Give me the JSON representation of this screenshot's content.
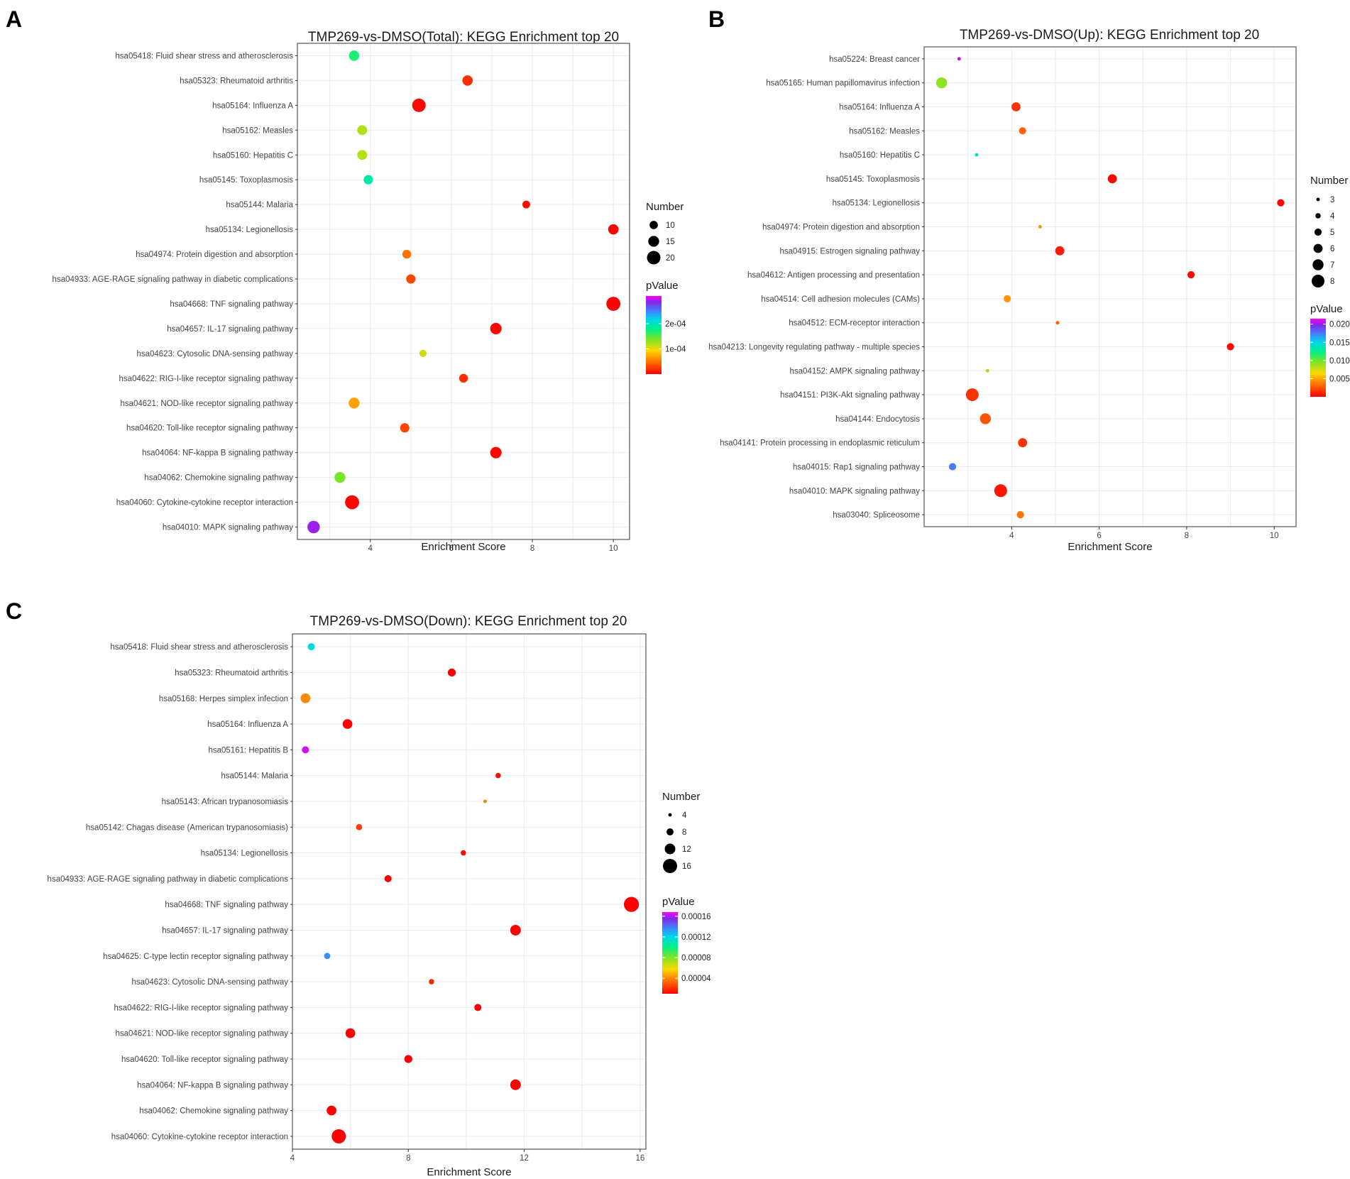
{
  "chart_data": [
    {
      "panel": "A",
      "type": "scatter",
      "title": "TMP269-vs-DMSO(Total): KEGG Enrichment top 20",
      "xlabel": "Enrichment Score",
      "xlim": [
        2.2,
        10.4
      ],
      "xticks": [
        4,
        6,
        8,
        10
      ],
      "xtick_labels": [
        "4",
        "6",
        "8",
        "10"
      ],
      "size_legend": {
        "title": "Number",
        "values": [
          10,
          15,
          20
        ],
        "labels": [
          "10",
          "15",
          "20"
        ]
      },
      "color_legend": {
        "title": "pValue",
        "min": 0,
        "max": 0.00031,
        "ticks": [
          0.0002,
          0.0001
        ],
        "tick_labels": [
          "2e-04",
          "1e-04"
        ]
      },
      "size_range": [
        5,
        20
      ],
      "points": [
        {
          "term": "hsa05418: Fluid shear stress and atherosclerosis",
          "x": 3.6,
          "size": 14,
          "p": 0.00017
        },
        {
          "term": "hsa05323: Rheumatoid arthritis",
          "x": 6.4,
          "size": 14,
          "p": 2e-05
        },
        {
          "term": "hsa05164: Influenza A",
          "x": 5.2,
          "size": 20,
          "p": 3e-06
        },
        {
          "term": "hsa05162: Measles",
          "x": 3.8,
          "size": 13,
          "p": 0.00012
        },
        {
          "term": "hsa05160: Hepatitis C",
          "x": 3.8,
          "size": 13,
          "p": 0.00012
        },
        {
          "term": "hsa05145: Toxoplasmosis",
          "x": 3.95,
          "size": 12,
          "p": 0.00019
        },
        {
          "term": "hsa05144: Malaria",
          "x": 7.85,
          "size": 9,
          "p": 5e-06
        },
        {
          "term": "hsa05134: Legionellosis",
          "x": 10.0,
          "size": 14,
          "p": 1e-06
        },
        {
          "term": "hsa04974: Protein digestion and absorption",
          "x": 4.9,
          "size": 11,
          "p": 5e-05
        },
        {
          "term": "hsa04933: AGE-RAGE signaling pathway in diabetic complications",
          "x": 5.0,
          "size": 12,
          "p": 3e-05
        },
        {
          "term": "hsa04668: TNF signaling pathway",
          "x": 10.0,
          "size": 21,
          "p": 1e-07
        },
        {
          "term": "hsa04657: IL-17 signaling pathway",
          "x": 7.1,
          "size": 16,
          "p": 2e-06
        },
        {
          "term": "hsa04623: Cytosolic DNA-sensing pathway",
          "x": 5.3,
          "size": 8,
          "p": 0.00011
        },
        {
          "term": "hsa04622: RIG-I-like receptor signaling pathway",
          "x": 6.3,
          "size": 11,
          "p": 2e-05
        },
        {
          "term": "hsa04621: NOD-like receptor signaling pathway",
          "x": 3.6,
          "size": 15,
          "p": 7e-05
        },
        {
          "term": "hsa04620: Toll-like receptor signaling pathway",
          "x": 4.85,
          "size": 12,
          "p": 3e-05
        },
        {
          "term": "hsa04064: NF-kappa B signaling pathway",
          "x": 7.1,
          "size": 16,
          "p": 2e-06
        },
        {
          "term": "hsa04062: Chemokine signaling pathway",
          "x": 3.25,
          "size": 15,
          "p": 0.00014
        },
        {
          "term": "hsa04060: Cytokine-cytokine receptor interaction",
          "x": 3.55,
          "size": 21,
          "p": 2e-06
        },
        {
          "term": "hsa04010: MAPK signaling pathway",
          "x": 2.6,
          "size": 18,
          "p": 0.00029
        }
      ]
    },
    {
      "panel": "B",
      "type": "scatter",
      "title": "TMP269-vs-DMSO(Up): KEGG Enrichment top 20",
      "xlabel": "Enrichment Score",
      "xlim": [
        2.0,
        10.5
      ],
      "xticks": [
        4,
        6,
        8,
        10
      ],
      "xtick_labels": [
        "4",
        "6",
        "8",
        "10"
      ],
      "size_legend": {
        "title": "Number",
        "values": [
          3,
          4,
          5,
          6,
          7,
          8
        ],
        "labels": [
          "3",
          "4",
          "5",
          "6",
          "7",
          "8"
        ]
      },
      "color_legend": {
        "title": "pValue",
        "min": 0,
        "max": 0.0215,
        "ticks": [
          0.02,
          0.015,
          0.01,
          0.005
        ],
        "tick_labels": [
          "0.020",
          "0.015",
          "0.010",
          "0.005"
        ]
      },
      "size_range": [
        3,
        8
      ],
      "points": [
        {
          "term": "hsa05224: Breast cancer",
          "x": 2.8,
          "size": 3,
          "p": 0.0205
        },
        {
          "term": "hsa05165: Human papillomavirus infection",
          "x": 2.4,
          "size": 7,
          "p": 0.0092
        },
        {
          "term": "hsa05164: Influenza A",
          "x": 4.1,
          "size": 6,
          "p": 0.0015
        },
        {
          "term": "hsa05162: Measles",
          "x": 4.25,
          "size": 5,
          "p": 0.003
        },
        {
          "term": "hsa05160: Hepatitis C",
          "x": 3.2,
          "size": 3,
          "p": 0.0145
        },
        {
          "term": "hsa05145: Toxoplasmosis",
          "x": 6.3,
          "size": 6,
          "p": 0.0002
        },
        {
          "term": "hsa05134: Legionellosis",
          "x": 10.15,
          "size": 5,
          "p": 0.0001
        },
        {
          "term": "hsa04974: Protein digestion and absorption",
          "x": 4.65,
          "size": 3,
          "p": 0.0045
        },
        {
          "term": "hsa04915: Estrogen signaling pathway",
          "x": 5.1,
          "size": 6,
          "p": 0.0008
        },
        {
          "term": "hsa04612: Antigen processing and presentation",
          "x": 8.1,
          "size": 5,
          "p": 0.0002
        },
        {
          "term": "hsa04514: Cell adhesion molecules (CAMs)",
          "x": 3.9,
          "size": 5,
          "p": 0.0045
        },
        {
          "term": "hsa04512: ECM-receptor interaction",
          "x": 5.05,
          "size": 3,
          "p": 0.003
        },
        {
          "term": "hsa04213: Longevity regulating pathway - multiple species",
          "x": 9.0,
          "size": 5,
          "p": 0.0003
        },
        {
          "term": "hsa04152: AMPK signaling pathway",
          "x": 3.45,
          "size": 3,
          "p": 0.0085
        },
        {
          "term": "hsa04151: PI3K-Akt signaling pathway",
          "x": 3.1,
          "size": 8,
          "p": 0.0015
        },
        {
          "term": "hsa04144: Endocytosis",
          "x": 3.4,
          "size": 7,
          "p": 0.0025
        },
        {
          "term": "hsa04141: Protein processing in endoplasmic reticulum",
          "x": 4.25,
          "size": 6,
          "p": 0.0015
        },
        {
          "term": "hsa04015: Rap1 signaling pathway",
          "x": 2.65,
          "size": 5,
          "p": 0.0175
        },
        {
          "term": "hsa04010: MAPK signaling pathway",
          "x": 3.75,
          "size": 8,
          "p": 0.0006
        },
        {
          "term": "hsa03040: Spliceosome",
          "x": 4.2,
          "size": 5,
          "p": 0.0035
        }
      ]
    },
    {
      "panel": "C",
      "type": "scatter",
      "title": "TMP269-vs-DMSO(Down): KEGG Enrichment top 20",
      "xlabel": "Enrichment Score",
      "xlim": [
        4.0,
        16.2
      ],
      "xticks": [
        4,
        8,
        12,
        16
      ],
      "xtick_labels": [
        "4",
        "8",
        "12",
        "16"
      ],
      "size_legend": {
        "title": "Number",
        "values": [
          4,
          8,
          12,
          16
        ],
        "labels": [
          "4",
          "8",
          "12",
          "16"
        ]
      },
      "color_legend": {
        "title": "pValue",
        "min": 1e-05,
        "max": 0.000168,
        "ticks": [
          0.00016,
          0.00012,
          8e-05,
          4e-05
        ],
        "tick_labels": [
          "0.00016",
          "0.00012",
          "0.00008",
          "0.00004"
        ]
      },
      "size_range": [
        4,
        16
      ],
      "points": [
        {
          "term": "hsa05418: Fluid shear stress and atherosclerosis",
          "x": 4.65,
          "size": 8,
          "p": 0.000118
        },
        {
          "term": "hsa05323: Rheumatoid arthritis",
          "x": 9.5,
          "size": 9,
          "p": 1e-06
        },
        {
          "term": "hsa05168: Herpes simplex infection",
          "x": 4.45,
          "size": 11,
          "p": 4e-05
        },
        {
          "term": "hsa05164: Influenza A",
          "x": 5.9,
          "size": 11,
          "p": 2e-06
        },
        {
          "term": "hsa05161: Hepatitis B",
          "x": 4.45,
          "size": 8,
          "p": 0.000163
        },
        {
          "term": "hsa05144: Malaria",
          "x": 11.1,
          "size": 6,
          "p": 1.2e-05
        },
        {
          "term": "hsa05143: African trypanosomiasis",
          "x": 10.65,
          "size": 3,
          "p": 4e-05
        },
        {
          "term": "hsa05142: Chagas disease (American trypanosomiasis)",
          "x": 6.3,
          "size": 7,
          "p": 2.4e-05
        },
        {
          "term": "hsa05134: Legionellosis",
          "x": 9.9,
          "size": 6,
          "p": 1.2e-05
        },
        {
          "term": "hsa04933: AGE-RAGE signaling pathway in diabetic complications",
          "x": 7.3,
          "size": 8,
          "p": 8e-06
        },
        {
          "term": "hsa04668: TNF signaling pathway",
          "x": 15.7,
          "size": 17,
          "p": 1e-07
        },
        {
          "term": "hsa04657: IL-17 signaling pathway",
          "x": 11.7,
          "size": 12,
          "p": 1e-06
        },
        {
          "term": "hsa04625: C-type lectin receptor signaling pathway",
          "x": 5.2,
          "size": 7,
          "p": 0.000135
        },
        {
          "term": "hsa04623: Cytosolic DNA-sensing pathway",
          "x": 8.8,
          "size": 6,
          "p": 1.8e-05
        },
        {
          "term": "hsa04622: RIG-I-like receptor signaling pathway",
          "x": 10.4,
          "size": 8,
          "p": 4e-06
        },
        {
          "term": "hsa04621: NOD-like receptor signaling pathway",
          "x": 6.0,
          "size": 11,
          "p": 2e-06
        },
        {
          "term": "hsa04620: Toll-like receptor signaling pathway",
          "x": 8.0,
          "size": 9,
          "p": 2e-06
        },
        {
          "term": "hsa04064: NF-kappa B signaling pathway",
          "x": 11.7,
          "size": 12,
          "p": 1e-06
        },
        {
          "term": "hsa04062: Chemokine signaling pathway",
          "x": 5.35,
          "size": 11,
          "p": 3e-06
        },
        {
          "term": "hsa04060: Cytokine-cytokine receptor interaction",
          "x": 5.6,
          "size": 16,
          "p": 1e-06
        }
      ]
    }
  ]
}
